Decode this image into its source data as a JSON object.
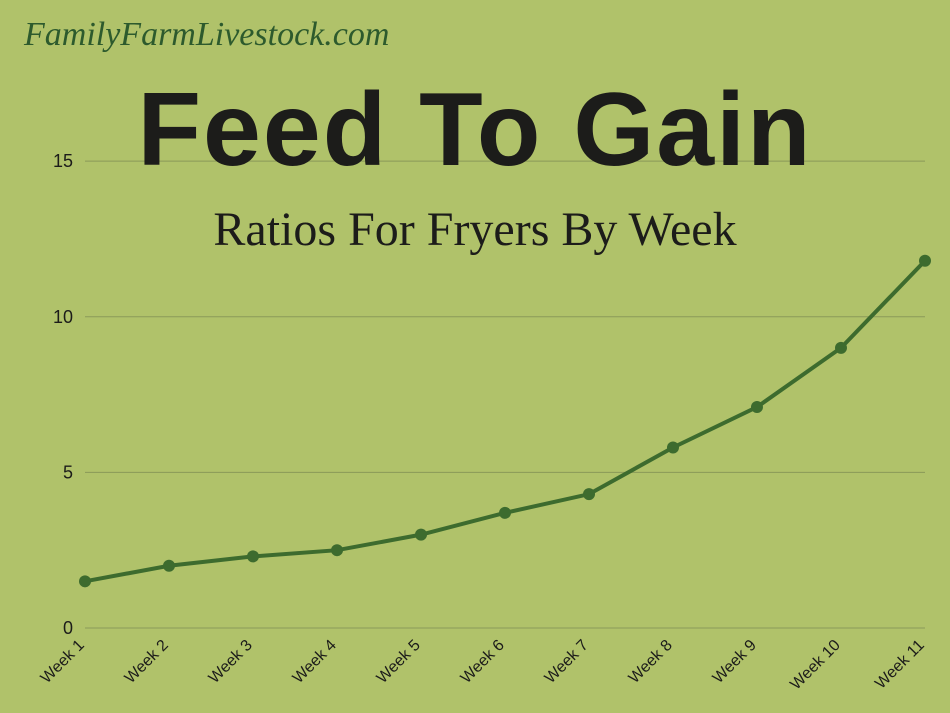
{
  "watermark": "FamilyFarmLivestock.com",
  "title_main": "Feed To Gain",
  "title_sub": "Ratios For Fryers By Week",
  "chart": {
    "type": "line",
    "background_color": "#b0c26a",
    "grid_color": "#8a9959",
    "line_color": "#3d6b2e",
    "marker_color": "#3d6b2e",
    "marker_radius": 6,
    "line_width": 4,
    "ylim": [
      0,
      16
    ],
    "yticks": [
      0,
      5,
      10,
      15
    ],
    "x_labels": [
      "Week 1",
      "Week 2",
      "Week 3",
      "Week 4",
      "Week 5",
      "Week 6",
      "Week 7",
      "Week 8",
      "Week 9",
      "Week 10",
      "Week 11"
    ],
    "values": [
      1.5,
      2.0,
      2.3,
      2.5,
      3.0,
      3.7,
      4.3,
      5.8,
      7.1,
      9.0,
      11.8
    ],
    "tick_fontsize_y": 18,
    "tick_fontsize_x": 16,
    "text_color": "#1c1c1a"
  }
}
